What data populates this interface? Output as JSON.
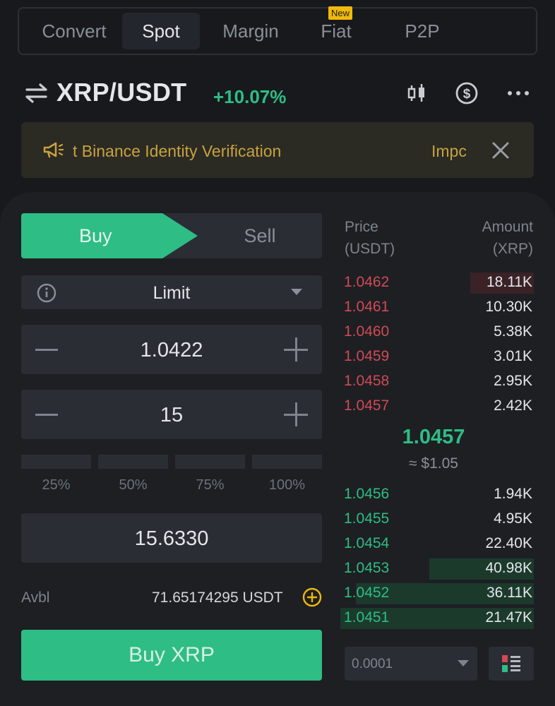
{
  "tabs": [
    {
      "label": "Convert",
      "active": false
    },
    {
      "label": "Spot",
      "active": true
    },
    {
      "label": "Margin",
      "active": false
    },
    {
      "label": "Fiat",
      "active": false,
      "badge": "New"
    },
    {
      "label": "P2P",
      "active": false
    }
  ],
  "pair": {
    "symbol": "XRP/USDT",
    "change": "+10.07%",
    "change_color": "#2ebd85"
  },
  "header_icons": [
    "candlestick-chart-icon",
    "dollar-circle-icon",
    "more-icon"
  ],
  "notice": {
    "text": "t Binance Identity Verification",
    "link": "Impc"
  },
  "order_form": {
    "buy_label": "Buy",
    "sell_label": "Sell",
    "order_type": "Limit",
    "price": "1.0422",
    "amount": "15",
    "percent_options": [
      "25%",
      "50%",
      "75%",
      "100%"
    ],
    "total": "15.6330",
    "avbl_label": "Avbl",
    "avbl_value": "71.65174295 USDT",
    "submit_label": "Buy XRP"
  },
  "order_book": {
    "price_header": [
      "Price",
      "(USDT)"
    ],
    "amount_header": [
      "Amount",
      "(XRP)"
    ],
    "asks": [
      {
        "price": "1.0462",
        "amount": "18.11K",
        "depth": 0.33
      },
      {
        "price": "1.0461",
        "amount": "10.30K",
        "depth": 0.0
      },
      {
        "price": "1.0460",
        "amount": "5.38K",
        "depth": 0.0
      },
      {
        "price": "1.0459",
        "amount": "3.01K",
        "depth": 0.0
      },
      {
        "price": "1.0458",
        "amount": "2.95K",
        "depth": 0.0
      },
      {
        "price": "1.0457",
        "amount": "2.42K",
        "depth": 0.0
      }
    ],
    "mid_price": "1.0457",
    "mid_fiat": "≈ $1.05",
    "bids": [
      {
        "price": "1.0456",
        "amount": "1.94K",
        "depth": 0.0
      },
      {
        "price": "1.0455",
        "amount": "4.95K",
        "depth": 0.0
      },
      {
        "price": "1.0454",
        "amount": "22.40K",
        "depth": 0.0
      },
      {
        "price": "1.0453",
        "amount": "40.98K",
        "depth": 0.54
      },
      {
        "price": "1.0452",
        "amount": "36.11K",
        "depth": 0.92
      },
      {
        "price": "1.0451",
        "amount": "21.47K",
        "depth": 1.0
      }
    ],
    "precision": "0.0001"
  },
  "colors": {
    "buy": "#2ebd85",
    "sell": "#d04a55",
    "accent": "#f0b90b"
  }
}
